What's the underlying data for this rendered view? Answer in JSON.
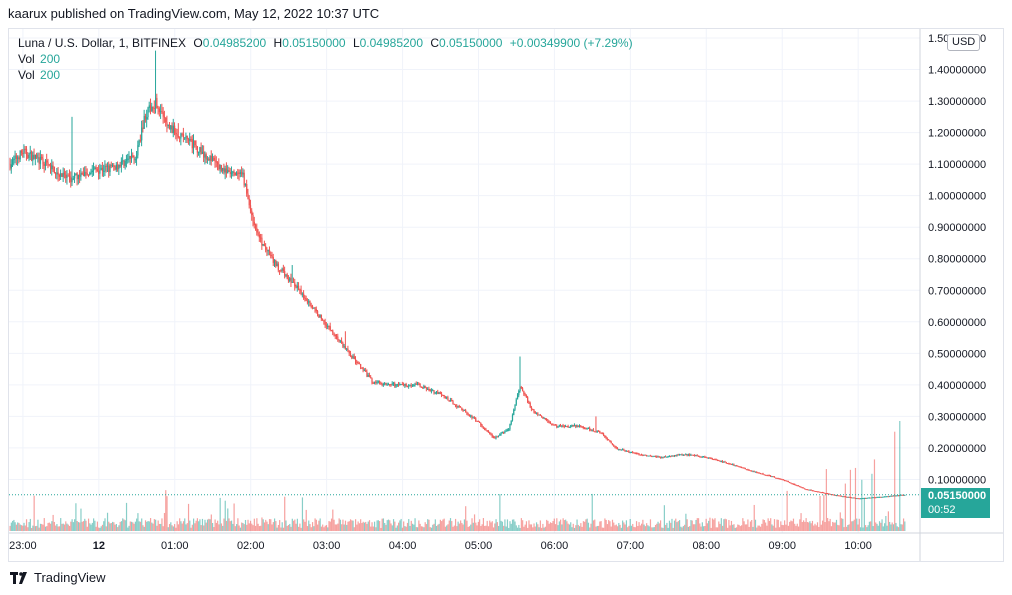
{
  "header": {
    "published_text": "kaarux published on TradingView.com, May 12, 2022 10:37 UTC"
  },
  "legend": {
    "symbol": "Luna / U.S. Dollar, 1, BITFINEX",
    "open_label": "O",
    "open_value": "0.04985200",
    "high_label": "H",
    "high_value": "0.05150000",
    "low_label": "L",
    "low_value": "0.04985200",
    "close_label": "C",
    "close_value": "0.05150000",
    "change": "+0.00349900 (+7.29%)",
    "vol_rows": [
      {
        "label": "Vol",
        "value": "200"
      },
      {
        "label": "Vol",
        "value": "200"
      }
    ]
  },
  "currency_badge": "USD",
  "last_price": {
    "value": "0.05150000",
    "countdown": "00:52"
  },
  "footer": {
    "brand": "TradingView"
  },
  "colors": {
    "up": "#26a69a",
    "down": "#ef5350",
    "grid": "#f0f3fa",
    "text": "#131722"
  },
  "chart_data": {
    "type": "candlestick",
    "ylim": [
      0,
      1.5
    ],
    "y_ticks": [
      "1.50000000",
      "1.40000000",
      "1.30000000",
      "1.20000000",
      "1.10000000",
      "1.00000000",
      "0.90000000",
      "0.80000000",
      "0.70000000",
      "0.60000000",
      "0.50000000",
      "0.40000000",
      "0.30000000",
      "0.20000000",
      "0.10000000"
    ],
    "y_tick_values": [
      1.5,
      1.4,
      1.3,
      1.2,
      1.1,
      1.0,
      0.9,
      0.8,
      0.7,
      0.6,
      0.5,
      0.4,
      0.3,
      0.2,
      0.1
    ],
    "x_ticks": [
      "23:00",
      "12",
      "01:00",
      "02:00",
      "03:00",
      "04:00",
      "05:00",
      "06:00",
      "07:00",
      "08:00",
      "09:00",
      "10:00"
    ],
    "x_tick_hours": [
      23,
      24,
      25,
      26,
      27,
      28,
      29,
      30,
      31,
      32,
      33,
      34
    ],
    "x_range_hours": [
      22.83,
      34.63
    ],
    "price_path": [
      {
        "h": 22.83,
        "p": 1.1
      },
      {
        "h": 23.0,
        "p": 1.14
      },
      {
        "h": 23.3,
        "p": 1.1
      },
      {
        "h": 23.6,
        "p": 1.05
      },
      {
        "h": 23.9,
        "p": 1.08
      },
      {
        "h": 24.2,
        "p": 1.09
      },
      {
        "h": 24.5,
        "p": 1.13
      },
      {
        "h": 24.6,
        "p": 1.25
      },
      {
        "h": 24.75,
        "p": 1.3
      },
      {
        "h": 24.9,
        "p": 1.22
      },
      {
        "h": 25.1,
        "p": 1.19
      },
      {
        "h": 25.4,
        "p": 1.13
      },
      {
        "h": 25.7,
        "p": 1.07
      },
      {
        "h": 25.9,
        "p": 1.06
      },
      {
        "h": 26.0,
        "p": 0.95
      },
      {
        "h": 26.1,
        "p": 0.87
      },
      {
        "h": 26.3,
        "p": 0.79
      },
      {
        "h": 26.6,
        "p": 0.71
      },
      {
        "h": 26.9,
        "p": 0.62
      },
      {
        "h": 27.2,
        "p": 0.53
      },
      {
        "h": 27.4,
        "p": 0.47
      },
      {
        "h": 27.6,
        "p": 0.41
      },
      {
        "h": 27.9,
        "p": 0.4
      },
      {
        "h": 28.2,
        "p": 0.4
      },
      {
        "h": 28.5,
        "p": 0.37
      },
      {
        "h": 28.8,
        "p": 0.32
      },
      {
        "h": 29.0,
        "p": 0.28
      },
      {
        "h": 29.2,
        "p": 0.23
      },
      {
        "h": 29.4,
        "p": 0.26
      },
      {
        "h": 29.55,
        "p": 0.4
      },
      {
        "h": 29.7,
        "p": 0.32
      },
      {
        "h": 30.0,
        "p": 0.27
      },
      {
        "h": 30.3,
        "p": 0.27
      },
      {
        "h": 30.6,
        "p": 0.25
      },
      {
        "h": 30.8,
        "p": 0.2
      },
      {
        "h": 31.1,
        "p": 0.18
      },
      {
        "h": 31.4,
        "p": 0.17
      },
      {
        "h": 31.7,
        "p": 0.18
      },
      {
        "h": 32.0,
        "p": 0.17
      },
      {
        "h": 32.3,
        "p": 0.15
      },
      {
        "h": 32.7,
        "p": 0.12
      },
      {
        "h": 33.0,
        "p": 0.1
      },
      {
        "h": 33.3,
        "p": 0.07
      },
      {
        "h": 33.7,
        "p": 0.05
      },
      {
        "h": 34.0,
        "p": 0.04
      },
      {
        "h": 34.3,
        "p": 0.045
      },
      {
        "h": 34.6,
        "p": 0.0515
      }
    ],
    "spikes": [
      {
        "h": 24.75,
        "high": 1.46
      },
      {
        "h": 23.65,
        "high": 1.25
      },
      {
        "h": 25.05,
        "high": 1.23
      },
      {
        "h": 27.25,
        "high": 0.57
      },
      {
        "h": 29.55,
        "high": 0.49
      },
      {
        "h": 30.55,
        "high": 0.3
      },
      {
        "h": 26.55,
        "high": 0.78
      }
    ]
  }
}
